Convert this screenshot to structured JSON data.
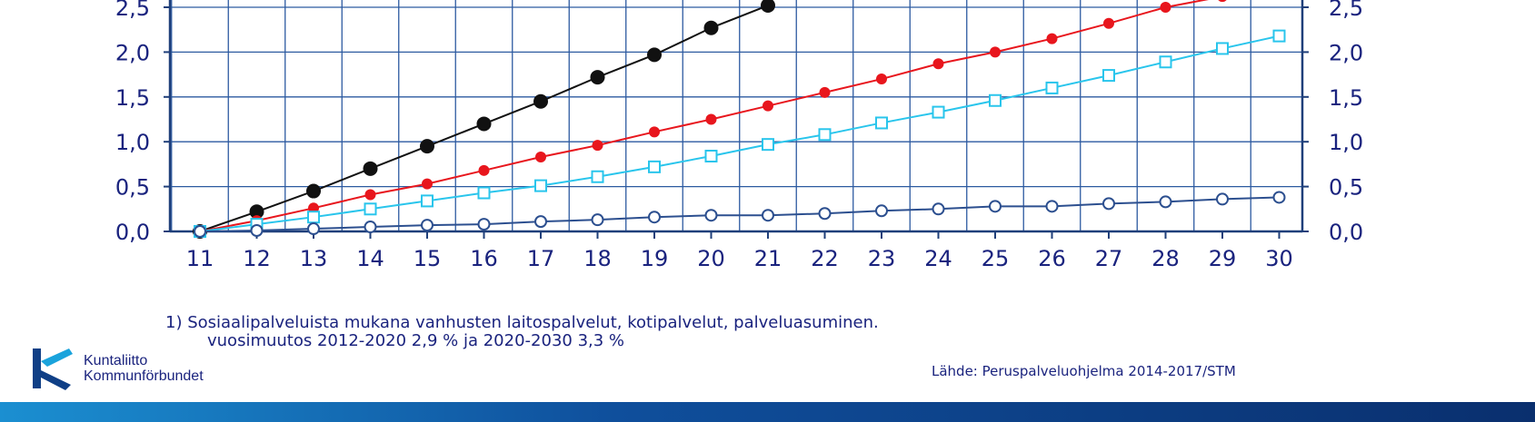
{
  "chart_data": {
    "type": "line",
    "x": [
      11,
      12,
      13,
      14,
      15,
      16,
      17,
      18,
      19,
      20,
      21,
      22,
      23,
      24,
      25,
      26,
      27,
      28,
      29,
      30
    ],
    "x_tick_labels": [
      "11",
      "12",
      "13",
      "14",
      "15",
      "16",
      "17",
      "18",
      "19",
      "20",
      "21",
      "22",
      "23",
      "24",
      "25",
      "26",
      "27",
      "28",
      "29",
      "30"
    ],
    "y_tick_labels": [
      "0,0",
      "0,5",
      "1,0",
      "1,5",
      "2,0",
      "2,5"
    ],
    "y_ticks": [
      0,
      0.5,
      1.0,
      1.5,
      2.0,
      2.5
    ],
    "ylim": [
      0,
      2.5
    ],
    "xlim": [
      11,
      30
    ],
    "grid": true,
    "secondary_y_axis": true,
    "series": [
      {
        "color": "#111111",
        "marker": "filled-circle",
        "values": [
          0.0,
          0.22,
          0.45,
          0.7,
          0.95,
          1.2,
          1.45,
          1.72,
          1.97,
          2.27,
          2.52,
          null,
          null,
          null,
          null,
          null,
          null,
          null,
          null,
          null
        ]
      },
      {
        "color": "#e8161d",
        "marker": "filled-dot",
        "values": [
          0.0,
          0.12,
          0.26,
          0.41,
          0.53,
          0.68,
          0.83,
          0.96,
          1.11,
          1.25,
          1.4,
          1.55,
          1.7,
          1.87,
          2.0,
          2.15,
          2.32,
          2.5,
          2.62,
          null
        ]
      },
      {
        "color": "#29c5ec",
        "marker": "open-square",
        "values": [
          0.0,
          0.08,
          0.16,
          0.25,
          0.34,
          0.43,
          0.51,
          0.61,
          0.72,
          0.84,
          0.97,
          1.08,
          1.21,
          1.33,
          1.46,
          1.6,
          1.74,
          1.89,
          2.04,
          2.18
        ]
      },
      {
        "color": "#2c4f8f",
        "marker": "open-circle",
        "values": [
          0.0,
          0.01,
          0.03,
          0.05,
          0.07,
          0.08,
          0.11,
          0.13,
          0.16,
          0.18,
          0.18,
          0.2,
          0.23,
          0.25,
          0.28,
          0.28,
          0.31,
          0.33,
          0.36,
          0.38
        ]
      }
    ]
  },
  "footnote": {
    "line1": "1) Sosiaalipalveluista  mukana vanhusten laitospalvelut, kotipalvelut, palveluasuminen.",
    "line2": "vuosimuutos 2012-2020 2,9 % ja 2020-2030 3,3 %"
  },
  "source": "Lähde:  Peruspalveluohjelma   2014-2017/STM",
  "logo": {
    "line1": "Kuntaliitto",
    "line2": "Kommunförbundet",
    "color": "#1aa3dc"
  },
  "band_color": "#0a2f6e"
}
